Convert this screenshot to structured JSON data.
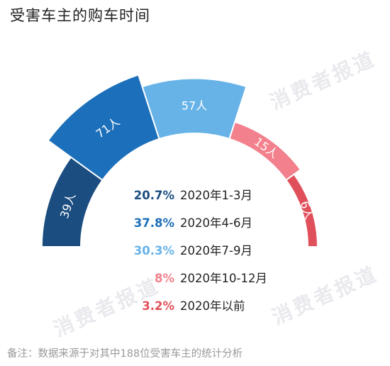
{
  "title": "受害车主的购车时间",
  "note": "备注：数据来源于对其中188位受害车主的统计分析",
  "watermark": "消费者报道",
  "chart_data": {
    "type": "pie",
    "variant": "half-donut, radius proportional to count",
    "categories": [
      "2020年1-3月",
      "2020年4-6月",
      "2020年7-9月",
      "2020年10-12月",
      "2020年以前"
    ],
    "values": [
      39,
      71,
      57,
      15,
      6
    ],
    "value_labels": [
      "39人",
      "71人",
      "57人",
      "15人",
      "6人"
    ],
    "percent_labels": [
      "20.7%",
      "37.8%",
      "30.3%",
      "8%",
      "3.2%"
    ],
    "colors": [
      "#1b4d80",
      "#1c6fba",
      "#67b3e8",
      "#f2808d",
      "#e0505a"
    ]
  }
}
